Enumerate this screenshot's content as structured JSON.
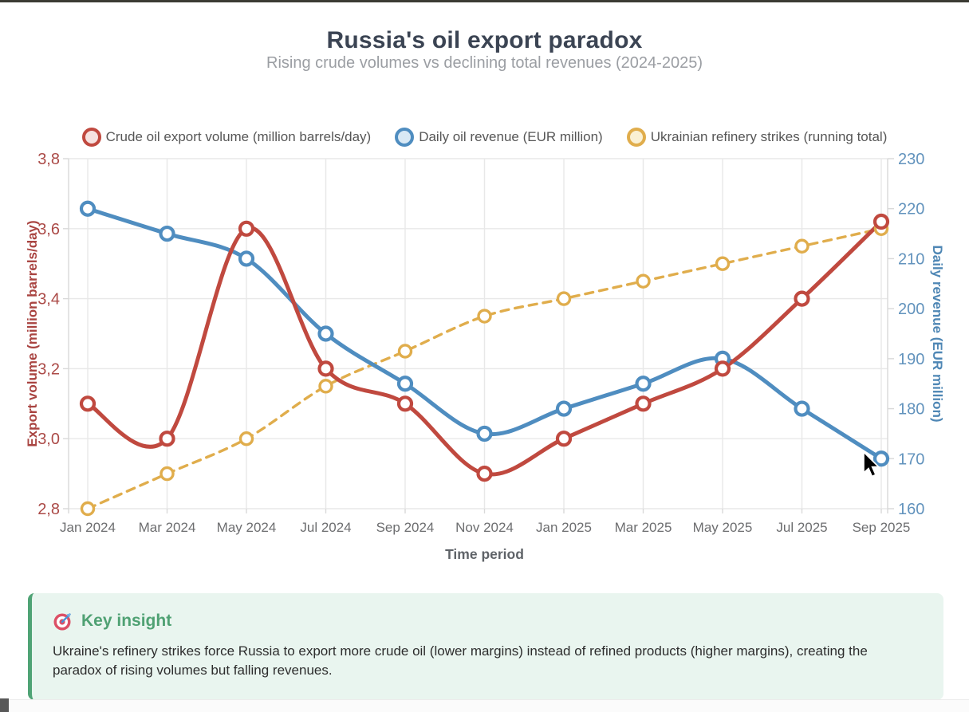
{
  "page": {
    "title": "Russia's oil export paradox",
    "subtitle": "Rising crude volumes vs declining total revenues (2024-2025)"
  },
  "chart_data": {
    "type": "line",
    "categories": [
      "Jan 2024",
      "Mar 2024",
      "May 2024",
      "Jul 2024",
      "Sep 2024",
      "Nov 2024",
      "Jan 2025",
      "Mar 2025",
      "May 2025",
      "Jul 2025",
      "Sep 2025"
    ],
    "x_axis_title": "Time period",
    "grid": true,
    "legend_position": "top",
    "left_axis": {
      "title": "Export volume (million barrels/day)",
      "ticks": [
        "2,8",
        "3,0",
        "3,2",
        "3,4",
        "3,6",
        "3,8"
      ],
      "min": 2.8,
      "max": 3.8,
      "color": "#a94441",
      "tick_color": "#ab4a47"
    },
    "right_axis": {
      "title": "Daily revenue (EUR million)",
      "ticks": [
        "160",
        "170",
        "180",
        "190",
        "200",
        "210",
        "220",
        "230"
      ],
      "min": 160,
      "max": 230,
      "color": "#4f87b5",
      "tick_color": "#6293bd"
    },
    "series": [
      {
        "key": "crude-oil-export-volume",
        "name": "Crude oil export volume (million barrels/day)",
        "axis": "left",
        "style": "solid",
        "color": "#c0493f",
        "legend_fill": "#f6e2e0",
        "values": [
          3.1,
          3.0,
          3.6,
          3.2,
          3.1,
          2.9,
          3.0,
          3.1,
          3.2,
          3.4,
          3.62
        ]
      },
      {
        "key": "daily-oil-revenue",
        "name": "Daily oil revenue (EUR million)",
        "axis": "right",
        "style": "solid",
        "color": "#4f8dc0",
        "legend_fill": "#d9e9f5",
        "values": [
          220,
          215,
          210,
          195,
          185,
          175,
          180,
          185,
          190,
          180,
          170
        ]
      },
      {
        "key": "ukrainian-refinery-strikes",
        "name": "Ukrainian refinery strikes (running total)",
        "axis": "left",
        "style": "dashed",
        "color": "#e0ad4c",
        "legend_fill": "#faf0d3",
        "values": [
          2.8,
          2.9,
          3.0,
          3.15,
          3.25,
          3.35,
          3.4,
          3.45,
          3.5,
          3.55,
          3.6
        ]
      }
    ],
    "x_label_color": "#6d6e70",
    "x_title_color": "#5f6368",
    "grid_color": "#e8e8e8",
    "axis_line_color": "#d9d9d9"
  },
  "insight": {
    "icon": "target-icon",
    "heading": "Key insight",
    "body": "Ukraine's refinery strikes force Russia to export more crude oil (lower margins) instead of refined products (higher margins), creating the paradox of rising volumes but falling revenues."
  }
}
